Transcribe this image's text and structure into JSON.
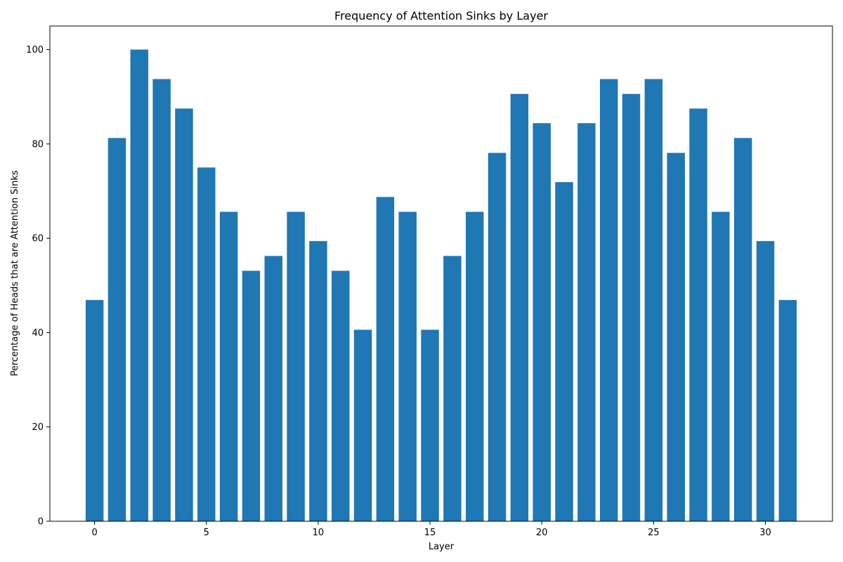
{
  "chart_data": {
    "type": "bar",
    "title": "Frequency of Attention Sinks by Layer",
    "xlabel": "Layer",
    "ylabel": "Percentage of Heads that are Attention Sinks",
    "x": [
      0,
      1,
      2,
      3,
      4,
      5,
      6,
      7,
      8,
      9,
      10,
      11,
      12,
      13,
      14,
      15,
      16,
      17,
      18,
      19,
      20,
      21,
      22,
      23,
      24,
      25,
      26,
      27,
      28,
      29,
      30,
      31
    ],
    "values": [
      46.9,
      81.25,
      100,
      93.75,
      87.5,
      75,
      65.6,
      53.1,
      56.25,
      65.6,
      59.4,
      53.1,
      40.6,
      68.75,
      65.6,
      40.6,
      56.25,
      65.6,
      78.1,
      90.6,
      84.4,
      71.9,
      84.4,
      93.75,
      90.6,
      93.75,
      78.1,
      87.5,
      65.6,
      81.25,
      59.4,
      46.9
    ],
    "xlim": [
      -2,
      33
    ],
    "ylim": [
      0,
      105
    ],
    "xticks": [
      0,
      5,
      10,
      15,
      20,
      25,
      30
    ],
    "yticks": [
      0,
      20,
      40,
      60,
      80,
      100
    ],
    "bar_color": "#1f77b4",
    "grid": false,
    "legend": "none"
  }
}
